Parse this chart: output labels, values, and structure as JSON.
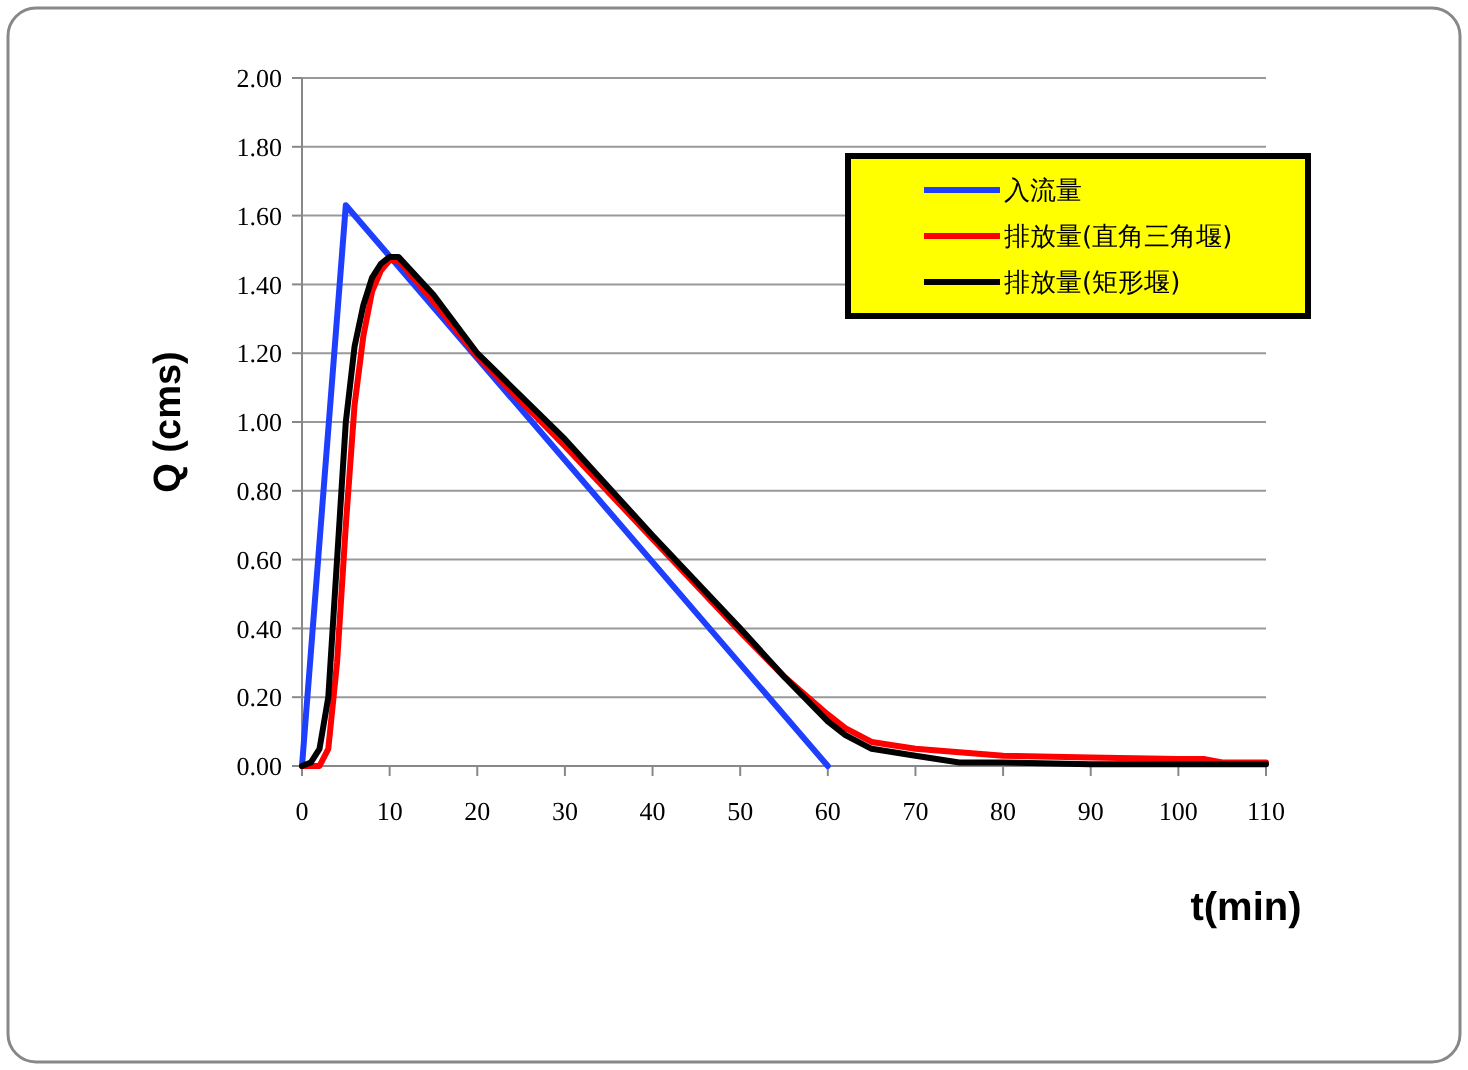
{
  "chart_data": {
    "type": "line",
    "xlabel": "t(min)",
    "ylabel": "Q (cms)",
    "xlim": [
      0,
      110
    ],
    "xticks": [
      0,
      10,
      20,
      30,
      40,
      50,
      60,
      70,
      80,
      90,
      100,
      110
    ],
    "ylim": [
      0,
      2
    ],
    "yticks": [
      {
        "value": 0,
        "label": "0.00"
      },
      {
        "value": 0.2,
        "label": "0.20"
      },
      {
        "value": 0.4,
        "label": "0.40"
      },
      {
        "value": 0.6,
        "label": "0.60"
      },
      {
        "value": 0.8,
        "label": "0.80"
      },
      {
        "value": 1,
        "label": "1.00"
      },
      {
        "value": 1.2,
        "label": "1.20"
      },
      {
        "value": 1.4,
        "label": "1.40"
      },
      {
        "value": 1.6,
        "label": "1.60"
      },
      {
        "value": 1.8,
        "label": "1.80"
      },
      {
        "value": 2,
        "label": "2.00"
      }
    ],
    "grid": "y",
    "legend": "top right",
    "marker": "none",
    "line_style": "solid",
    "series": [
      {
        "name": "入流量",
        "color": "#1f3fff",
        "x": [
          0,
          5,
          60
        ],
        "values": [
          0,
          1.63,
          0
        ]
      },
      {
        "name": "排放量(直角三角堰)",
        "color": "#ff0000",
        "x": [
          0,
          2,
          3,
          4,
          5,
          6,
          7,
          8,
          9,
          10,
          11,
          15,
          20,
          30,
          40,
          50,
          55,
          60,
          62,
          65,
          70,
          75,
          80,
          90,
          100,
          103,
          105,
          110
        ],
        "values": [
          0,
          0,
          0.05,
          0.3,
          0.7,
          1.05,
          1.25,
          1.38,
          1.44,
          1.47,
          1.47,
          1.35,
          1.19,
          0.93,
          0.66,
          0.39,
          0.26,
          0.15,
          0.11,
          0.07,
          0.05,
          0.04,
          0.03,
          0.025,
          0.02,
          0.02,
          0.01,
          0.01
        ]
      },
      {
        "name": "排放量(矩形堰)",
        "color": "#000000",
        "x": [
          0,
          1,
          2,
          3,
          4,
          5,
          6,
          7,
          8,
          9,
          10,
          11,
          15,
          20,
          30,
          40,
          50,
          55,
          60,
          62,
          65,
          70,
          75,
          80,
          90,
          110
        ],
        "values": [
          0,
          0.01,
          0.05,
          0.2,
          0.6,
          1.0,
          1.22,
          1.34,
          1.42,
          1.46,
          1.48,
          1.48,
          1.37,
          1.2,
          0.95,
          0.67,
          0.4,
          0.26,
          0.13,
          0.09,
          0.05,
          0.03,
          0.01,
          0.01,
          0.005,
          0.005
        ]
      }
    ]
  }
}
